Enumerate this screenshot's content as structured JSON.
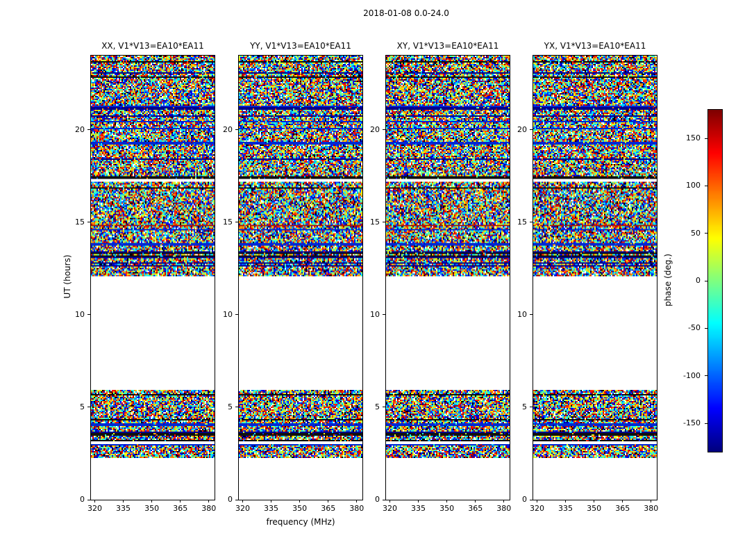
{
  "chart_data": {
    "type": "heatmap",
    "title": "2018-01-08 0.0-24.0",
    "panels": [
      {
        "title": "XX, V1*V13=EA10*EA11"
      },
      {
        "title": "YY, V1*V13=EA10*EA11"
      },
      {
        "title": "XY, V1*V13=EA10*EA11"
      },
      {
        "title": "YX, V1*V13=EA10*EA11"
      }
    ],
    "xlabel": "frequency (MHz)",
    "ylabel": "UT (hours)",
    "x_ticks": [
      320,
      335,
      350,
      365,
      380
    ],
    "x_range": [
      318,
      383
    ],
    "y_ticks": [
      0,
      5,
      10,
      15,
      20
    ],
    "y_range": [
      0,
      24
    ],
    "colorbar": {
      "label": "phase (deg.)",
      "ticks": [
        150,
        100,
        50,
        0,
        -50,
        -100,
        -150
      ],
      "range": [
        -180,
        180
      ],
      "colormap": "jet"
    },
    "data_description": "Dynamic spectra of visibility phase: pseudo-random phase noise with horizontal striping; white where no data.",
    "time_coverage_bands_ut_hours": [
      [
        2.25,
        5.95
      ],
      [
        12.08,
        24.0
      ]
    ]
  }
}
